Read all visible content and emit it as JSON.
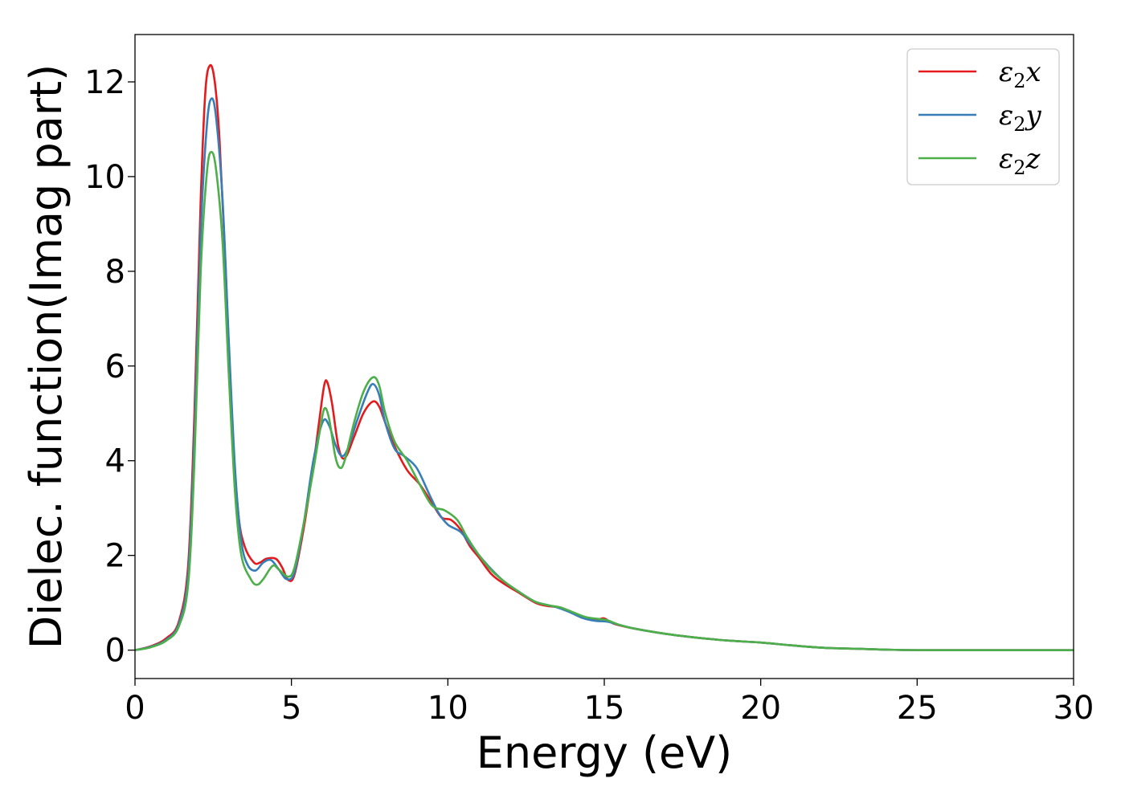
{
  "chart_data": {
    "type": "line",
    "title": "",
    "xlabel": "Energy (eV)",
    "ylabel": "Dielec. function(Imag part)",
    "xlim": [
      0,
      30
    ],
    "ylim": [
      -0.6,
      13.0
    ],
    "xticks": [
      0,
      5,
      10,
      15,
      20,
      25,
      30
    ],
    "yticks": [
      0,
      2,
      4,
      6,
      8,
      10,
      12
    ],
    "grid": false,
    "legend_position": "top-right",
    "series": [
      {
        "name": "ε₂x",
        "legend_base": "ε",
        "legend_sub": "2",
        "legend_suffix": "x",
        "color": "#e41a1c",
        "points": [
          [
            0,
            0
          ],
          [
            0.5,
            0.08
          ],
          [
            1.0,
            0.25
          ],
          [
            1.4,
            0.6
          ],
          [
            1.7,
            1.8
          ],
          [
            1.9,
            5.0
          ],
          [
            2.1,
            9.5
          ],
          [
            2.25,
            11.8
          ],
          [
            2.4,
            12.35
          ],
          [
            2.55,
            12.0
          ],
          [
            2.7,
            10.8
          ],
          [
            2.9,
            8.0
          ],
          [
            3.1,
            4.8
          ],
          [
            3.3,
            2.9
          ],
          [
            3.5,
            2.2
          ],
          [
            3.8,
            1.85
          ],
          [
            4.0,
            1.85
          ],
          [
            4.2,
            1.93
          ],
          [
            4.5,
            1.93
          ],
          [
            4.7,
            1.75
          ],
          [
            4.9,
            1.48
          ],
          [
            5.1,
            1.6
          ],
          [
            5.4,
            2.6
          ],
          [
            5.7,
            3.9
          ],
          [
            5.9,
            4.9
          ],
          [
            6.05,
            5.6
          ],
          [
            6.15,
            5.65
          ],
          [
            6.3,
            5.2
          ],
          [
            6.5,
            4.3
          ],
          [
            6.7,
            4.05
          ],
          [
            7.0,
            4.5
          ],
          [
            7.3,
            5.0
          ],
          [
            7.6,
            5.25
          ],
          [
            7.8,
            5.15
          ],
          [
            8.0,
            4.8
          ],
          [
            8.3,
            4.3
          ],
          [
            8.7,
            3.8
          ],
          [
            9.1,
            3.5
          ],
          [
            9.5,
            3.1
          ],
          [
            9.8,
            2.8
          ],
          [
            10.1,
            2.75
          ],
          [
            10.4,
            2.55
          ],
          [
            10.7,
            2.2
          ],
          [
            11.0,
            1.95
          ],
          [
            11.4,
            1.6
          ],
          [
            11.8,
            1.4
          ],
          [
            12.3,
            1.2
          ],
          [
            12.8,
            1.0
          ],
          [
            13.2,
            0.93
          ],
          [
            13.6,
            0.9
          ],
          [
            14.0,
            0.78
          ],
          [
            14.4,
            0.68
          ],
          [
            14.8,
            0.65
          ],
          [
            15.0,
            0.67
          ],
          [
            15.3,
            0.56
          ],
          [
            16.0,
            0.45
          ],
          [
            17.0,
            0.34
          ],
          [
            18.0,
            0.26
          ],
          [
            19.0,
            0.2
          ],
          [
            20.0,
            0.16
          ],
          [
            21.0,
            0.1
          ],
          [
            22.0,
            0.05
          ],
          [
            23.0,
            0.03
          ],
          [
            24.0,
            0.01
          ],
          [
            25.0,
            0.0
          ],
          [
            27.0,
            0.0
          ],
          [
            30.0,
            0.0
          ]
        ]
      },
      {
        "name": "ε₂y",
        "legend_base": "ε",
        "legend_sub": "2",
        "legend_suffix": "y",
        "color": "#377eb8",
        "points": [
          [
            0,
            0
          ],
          [
            0.5,
            0.07
          ],
          [
            1.0,
            0.22
          ],
          [
            1.4,
            0.55
          ],
          [
            1.7,
            1.6
          ],
          [
            1.9,
            4.5
          ],
          [
            2.1,
            8.8
          ],
          [
            2.3,
            11.1
          ],
          [
            2.45,
            11.65
          ],
          [
            2.6,
            11.2
          ],
          [
            2.8,
            9.5
          ],
          [
            3.0,
            6.5
          ],
          [
            3.2,
            3.8
          ],
          [
            3.4,
            2.3
          ],
          [
            3.6,
            1.8
          ],
          [
            3.85,
            1.68
          ],
          [
            4.1,
            1.85
          ],
          [
            4.35,
            1.9
          ],
          [
            4.6,
            1.7
          ],
          [
            4.85,
            1.5
          ],
          [
            5.1,
            1.65
          ],
          [
            5.4,
            2.7
          ],
          [
            5.7,
            4.0
          ],
          [
            6.0,
            4.82
          ],
          [
            6.2,
            4.75
          ],
          [
            6.4,
            4.35
          ],
          [
            6.6,
            4.1
          ],
          [
            6.8,
            4.25
          ],
          [
            7.1,
            4.85
          ],
          [
            7.4,
            5.4
          ],
          [
            7.6,
            5.62
          ],
          [
            7.8,
            5.4
          ],
          [
            8.0,
            4.8
          ],
          [
            8.3,
            4.25
          ],
          [
            8.6,
            4.1
          ],
          [
            9.0,
            3.85
          ],
          [
            9.4,
            3.3
          ],
          [
            9.7,
            2.9
          ],
          [
            10.0,
            2.65
          ],
          [
            10.4,
            2.5
          ],
          [
            10.7,
            2.25
          ],
          [
            11.0,
            2.0
          ],
          [
            11.4,
            1.7
          ],
          [
            11.8,
            1.45
          ],
          [
            12.3,
            1.22
          ],
          [
            12.8,
            1.02
          ],
          [
            13.2,
            0.95
          ],
          [
            13.5,
            0.9
          ],
          [
            13.9,
            0.8
          ],
          [
            14.3,
            0.68
          ],
          [
            14.7,
            0.62
          ],
          [
            15.1,
            0.6
          ],
          [
            15.5,
            0.53
          ],
          [
            16.0,
            0.45
          ],
          [
            17.0,
            0.34
          ],
          [
            18.0,
            0.26
          ],
          [
            19.0,
            0.2
          ],
          [
            20.0,
            0.16
          ],
          [
            21.0,
            0.1
          ],
          [
            22.0,
            0.05
          ],
          [
            23.0,
            0.03
          ],
          [
            24.0,
            0.01
          ],
          [
            25.0,
            0.0
          ],
          [
            27.0,
            0.0
          ],
          [
            30.0,
            0.0
          ]
        ]
      },
      {
        "name": "ε₂z",
        "legend_base": "ε",
        "legend_sub": "2",
        "legend_suffix": "z",
        "color": "#4daf4a",
        "points": [
          [
            0,
            0
          ],
          [
            0.5,
            0.06
          ],
          [
            1.0,
            0.2
          ],
          [
            1.4,
            0.5
          ],
          [
            1.7,
            1.4
          ],
          [
            1.9,
            4.0
          ],
          [
            2.1,
            8.0
          ],
          [
            2.3,
            10.1
          ],
          [
            2.45,
            10.52
          ],
          [
            2.6,
            10.1
          ],
          [
            2.8,
            8.6
          ],
          [
            3.0,
            5.8
          ],
          [
            3.2,
            3.3
          ],
          [
            3.4,
            2.0
          ],
          [
            3.7,
            1.5
          ],
          [
            3.9,
            1.38
          ],
          [
            4.1,
            1.5
          ],
          [
            4.4,
            1.78
          ],
          [
            4.6,
            1.7
          ],
          [
            4.9,
            1.55
          ],
          [
            5.1,
            1.75
          ],
          [
            5.4,
            2.7
          ],
          [
            5.7,
            3.8
          ],
          [
            5.9,
            4.6
          ],
          [
            6.05,
            5.1
          ],
          [
            6.2,
            4.9
          ],
          [
            6.4,
            4.1
          ],
          [
            6.55,
            3.85
          ],
          [
            6.7,
            4.0
          ],
          [
            7.0,
            4.8
          ],
          [
            7.3,
            5.45
          ],
          [
            7.6,
            5.76
          ],
          [
            7.8,
            5.6
          ],
          [
            8.0,
            5.0
          ],
          [
            8.3,
            4.4
          ],
          [
            8.7,
            4.0
          ],
          [
            9.1,
            3.5
          ],
          [
            9.5,
            3.05
          ],
          [
            9.9,
            2.95
          ],
          [
            10.3,
            2.75
          ],
          [
            10.6,
            2.4
          ],
          [
            11.0,
            2.0
          ],
          [
            11.4,
            1.68
          ],
          [
            11.8,
            1.45
          ],
          [
            12.3,
            1.22
          ],
          [
            12.8,
            1.02
          ],
          [
            13.2,
            0.95
          ],
          [
            13.6,
            0.9
          ],
          [
            14.0,
            0.8
          ],
          [
            14.4,
            0.7
          ],
          [
            14.8,
            0.66
          ],
          [
            15.1,
            0.63
          ],
          [
            15.5,
            0.53
          ],
          [
            16.0,
            0.45
          ],
          [
            17.0,
            0.34
          ],
          [
            18.0,
            0.26
          ],
          [
            19.0,
            0.2
          ],
          [
            20.0,
            0.16
          ],
          [
            21.0,
            0.1
          ],
          [
            22.0,
            0.05
          ],
          [
            23.0,
            0.03
          ],
          [
            24.0,
            0.01
          ],
          [
            25.0,
            0.0
          ],
          [
            27.0,
            0.0
          ],
          [
            30.0,
            0.0
          ]
        ]
      }
    ]
  }
}
